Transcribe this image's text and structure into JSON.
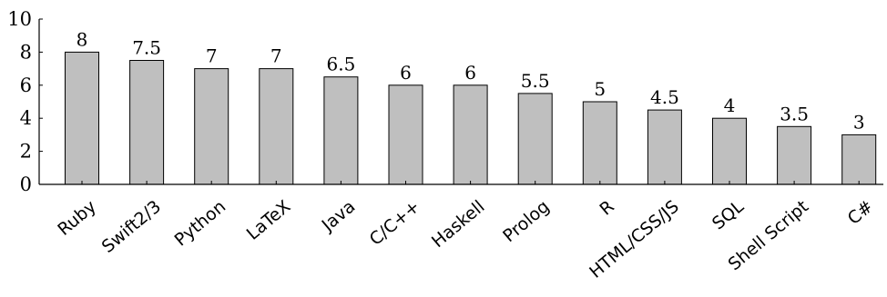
{
  "chart_data": {
    "type": "bar",
    "categories": [
      "Ruby",
      "Swift2/3",
      "Python",
      "LaTeX",
      "Java",
      "C/C++",
      "Haskell",
      "Prolog",
      "R",
      "HTML/CSS/JS",
      "SQL",
      "Shell Script",
      "C#"
    ],
    "values": [
      8,
      7.5,
      7,
      7,
      6.5,
      6,
      6,
      5.5,
      5,
      4.5,
      4,
      3.5,
      3
    ],
    "data_labels": [
      "8",
      "7.5",
      "7",
      "7",
      "6.5",
      "6",
      "6",
      "5.5",
      "5",
      "4.5",
      "4",
      "3.5",
      "3"
    ],
    "y_ticks": [
      "0",
      "2",
      "4",
      "6",
      "8",
      "10"
    ],
    "ylim": [
      0,
      10
    ],
    "grid": false,
    "bar_color": "#bfbfbf",
    "title": "",
    "xlabel": "",
    "ylabel": ""
  }
}
